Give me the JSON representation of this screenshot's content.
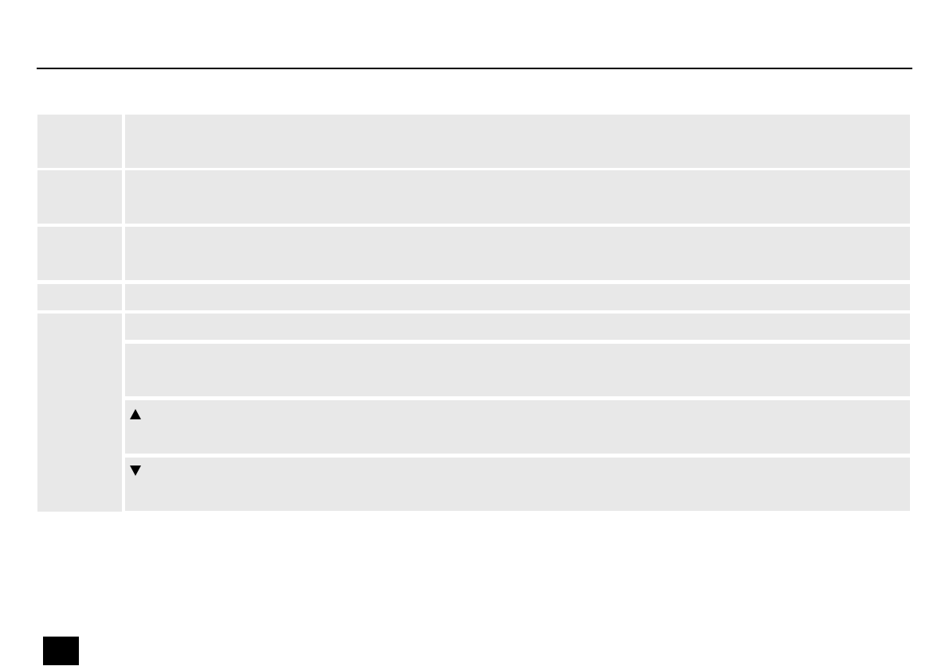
{
  "header": {
    "rule": true
  },
  "table": {
    "rows": [
      {
        "label": "",
        "cells": [
          ""
        ]
      },
      {
        "label": "",
        "cells": [
          ""
        ]
      },
      {
        "label": "",
        "cells": [
          ""
        ]
      },
      {
        "label": "",
        "cells": [
          ""
        ]
      },
      {
        "label": "",
        "cells": [
          "",
          "",
          "",
          ""
        ]
      }
    ],
    "icons": {
      "up": "triangle-up-icon",
      "down": "triangle-down-icon"
    },
    "cell_color": "#e8e8e8"
  },
  "footer": {
    "page_marker_color": "#000000"
  }
}
